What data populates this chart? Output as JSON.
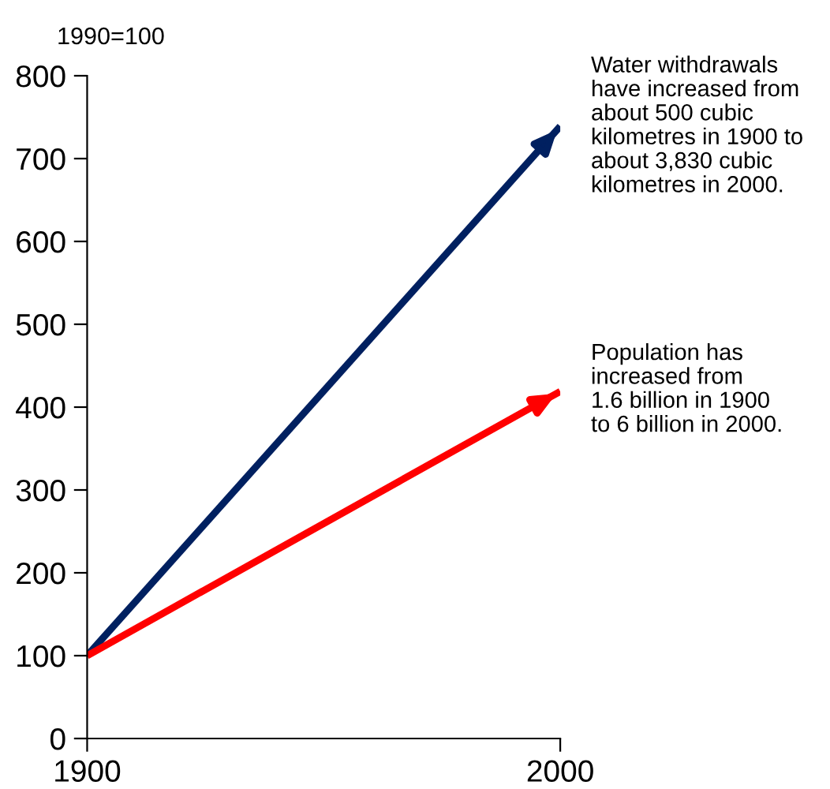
{
  "chart_data": {
    "type": "line",
    "ylabel": "1990=100",
    "x": [
      1900,
      2000
    ],
    "series": [
      {
        "color": "#002060",
        "values": [
          100,
          739
        ]
      },
      {
        "color": "#ff0000",
        "values": [
          100,
          419
        ]
      }
    ],
    "annotations": [
      {
        "text": "Water withdrawals\nhave increased from\nabout 500 cubic\nkilometres in 1900 to\nabout 3,830 cubic\nkilometres in 2000.",
        "x": 2000,
        "y": 739
      },
      {
        "text": "Population has\nincreased from\n1.6 billion in 1900\nto 6 billion in 2000.",
        "x": 2000,
        "y": 419
      }
    ],
    "xlim": [
      1900,
      2000
    ],
    "xticks": [
      1900,
      2000
    ],
    "ylim": [
      0,
      800
    ],
    "yticks": [
      0,
      100,
      200,
      300,
      400,
      500,
      600,
      700,
      800
    ],
    "grid": false,
    "legend": false,
    "marker": "none",
    "line_style": "solid"
  }
}
